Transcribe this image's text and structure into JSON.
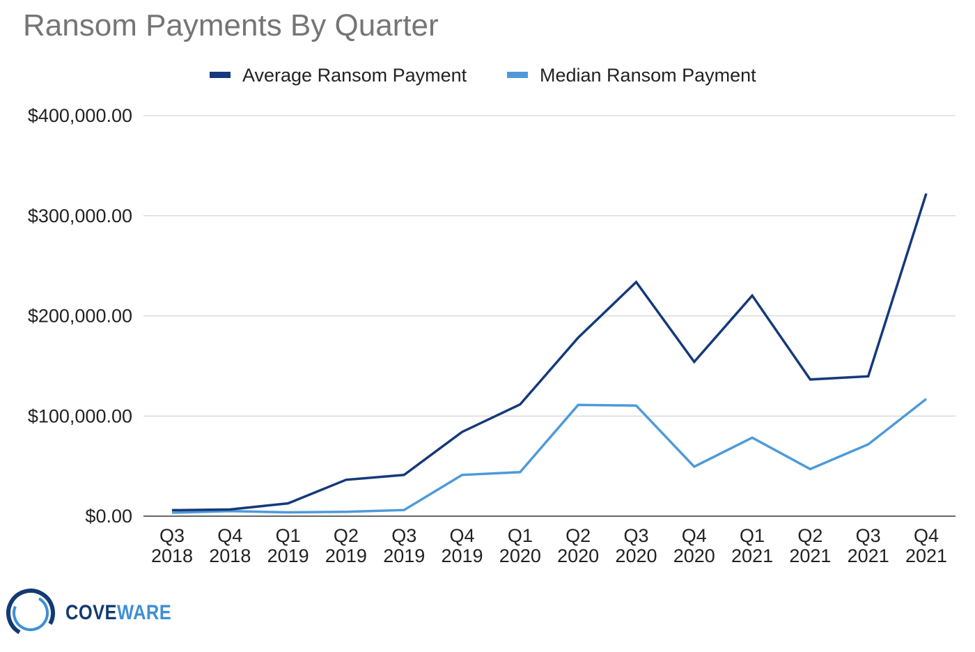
{
  "chart_data": {
    "type": "line",
    "title": "Ransom Payments By Quarter",
    "xlabel": "",
    "ylabel": "",
    "ylim": [
      0,
      400000
    ],
    "yticks": [
      0,
      100000,
      200000,
      300000,
      400000
    ],
    "ytick_labels": [
      "$0.00",
      "$100,000.00",
      "$200,000.00",
      "$300,000.00",
      "$400,000.00"
    ],
    "grid": true,
    "legend_position": "top",
    "categories": [
      [
        "Q3",
        "2018"
      ],
      [
        "Q4",
        "2018"
      ],
      [
        "Q1",
        "2019"
      ],
      [
        "Q2",
        "2019"
      ],
      [
        "Q3",
        "2019"
      ],
      [
        "Q4",
        "2019"
      ],
      [
        "Q1",
        "2020"
      ],
      [
        "Q2",
        "2020"
      ],
      [
        "Q3",
        "2020"
      ],
      [
        "Q4",
        "2020"
      ],
      [
        "Q1",
        "2021"
      ],
      [
        "Q2",
        "2021"
      ],
      [
        "Q3",
        "2021"
      ],
      [
        "Q4",
        "2021"
      ]
    ],
    "series": [
      {
        "name": "Average Ransom Payment",
        "color": "#15397a",
        "values": [
          6000,
          6700,
          12800,
          36300,
          41200,
          84100,
          111600,
          178300,
          233800,
          154100,
          220300,
          136500,
          139700,
          322200
        ]
      },
      {
        "name": "Median Ransom Payment",
        "color": "#4e9ad9",
        "values": [
          3500,
          5000,
          3800,
          4400,
          6100,
          41200,
          44000,
          111100,
          110500,
          49400,
          78400,
          47000,
          71700,
          117000
        ]
      }
    ]
  },
  "logo": {
    "text_part1": "COVE",
    "text_part2": "WARE",
    "icon": "circle-logo-icon"
  }
}
